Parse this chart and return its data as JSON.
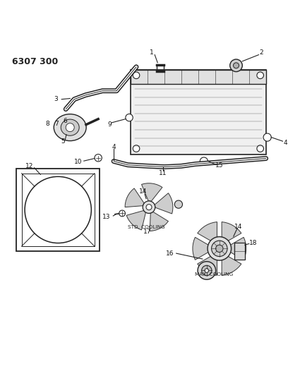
{
  "title": "6307 300",
  "bg_color": "#ffffff",
  "line_color": "#222222",
  "label_color": "#111111",
  "fig_width": 4.08,
  "fig_height": 5.33,
  "dpi": 100
}
